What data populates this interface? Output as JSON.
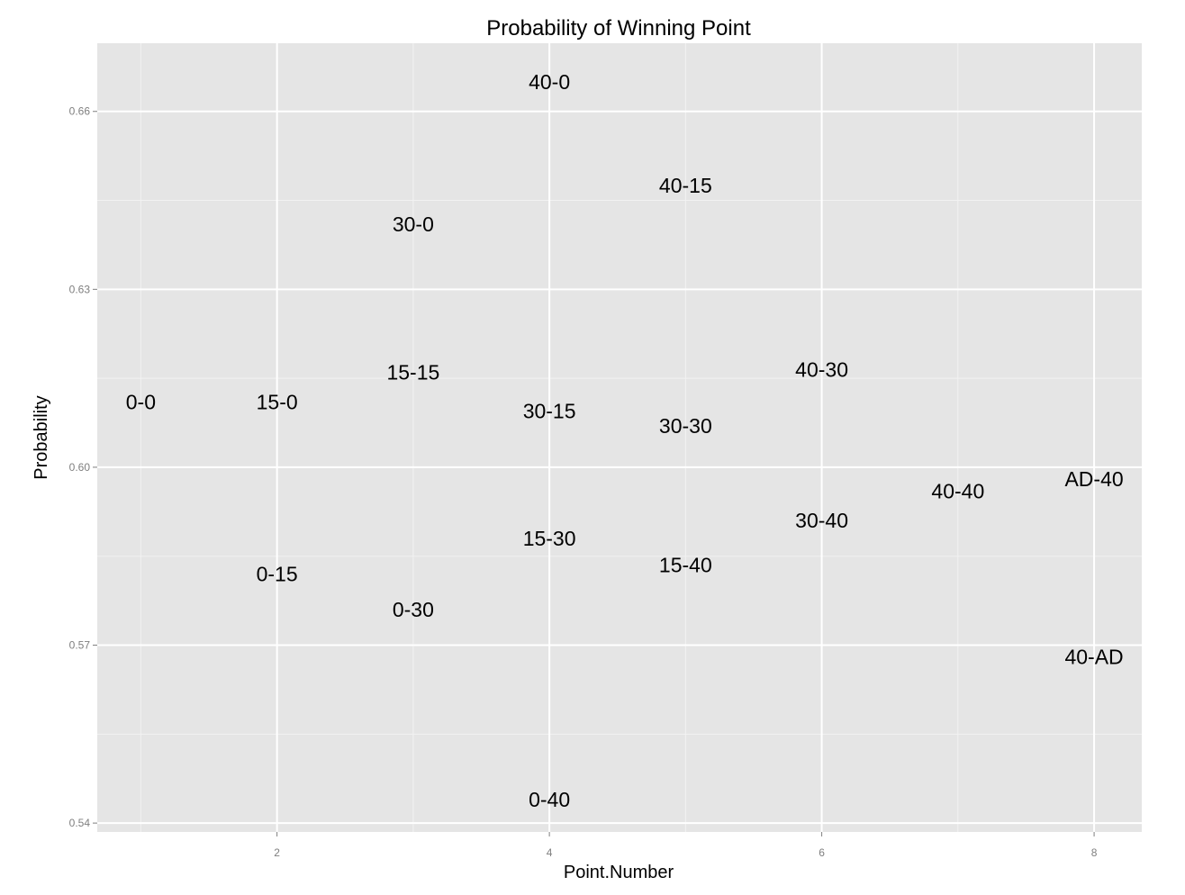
{
  "chart_data": {
    "type": "scatter",
    "title": "Probability of Winning Point",
    "xlabel": "Point.Number",
    "ylabel": "Probability",
    "xlim": [
      0.68,
      8.35
    ],
    "ylim": [
      0.5385,
      0.6715
    ],
    "x_ticks": [
      2,
      4,
      6,
      8
    ],
    "x_tick_labels": [
      "2",
      "4",
      "6",
      "8"
    ],
    "y_ticks": [
      0.54,
      0.57,
      0.6,
      0.63,
      0.66
    ],
    "y_tick_labels": [
      "0.54",
      "0.57",
      "0.60",
      "0.63",
      "0.66"
    ],
    "grid": true,
    "legend": "none",
    "points": [
      {
        "label": "0-0",
        "x": 1,
        "y": 0.611
      },
      {
        "label": "15-0",
        "x": 2,
        "y": 0.611
      },
      {
        "label": "0-15",
        "x": 2,
        "y": 0.582
      },
      {
        "label": "30-0",
        "x": 3,
        "y": 0.641
      },
      {
        "label": "15-15",
        "x": 3,
        "y": 0.616
      },
      {
        "label": "0-30",
        "x": 3,
        "y": 0.576
      },
      {
        "label": "40-0",
        "x": 4,
        "y": 0.665
      },
      {
        "label": "30-15",
        "x": 4,
        "y": 0.6095
      },
      {
        "label": "15-30",
        "x": 4,
        "y": 0.588
      },
      {
        "label": "0-40",
        "x": 4,
        "y": 0.544
      },
      {
        "label": "40-15",
        "x": 5,
        "y": 0.6475
      },
      {
        "label": "30-30",
        "x": 5,
        "y": 0.607
      },
      {
        "label": "15-40",
        "x": 5,
        "y": 0.5835
      },
      {
        "label": "40-30",
        "x": 6,
        "y": 0.6165
      },
      {
        "label": "30-40",
        "x": 6,
        "y": 0.591
      },
      {
        "label": "40-40",
        "x": 7,
        "y": 0.596
      },
      {
        "label": "AD-40",
        "x": 8,
        "y": 0.598
      },
      {
        "label": "40-AD",
        "x": 8,
        "y": 0.568
      }
    ]
  },
  "colors": {
    "panel_background": "#e5e5e5",
    "major_grid": "#ffffff",
    "minor_grid": "#f2f2f2",
    "text": "#000000",
    "tick_text": "#7f7f7f",
    "tick_mark": "#7f7f7f"
  }
}
